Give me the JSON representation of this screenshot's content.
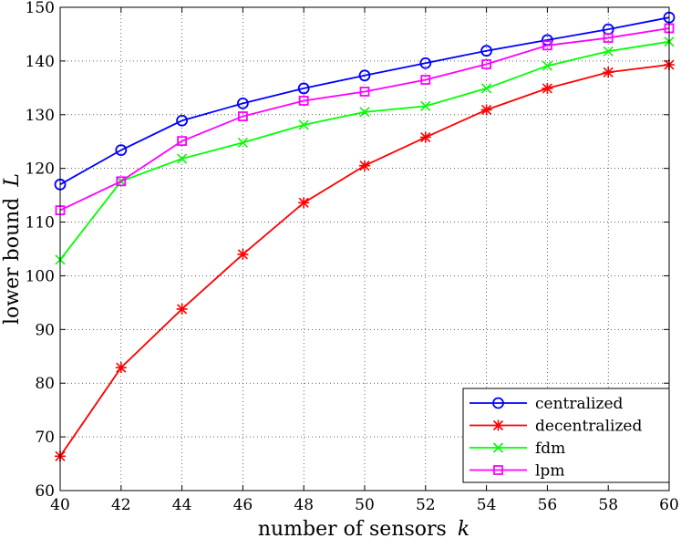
{
  "chart_data": {
    "type": "line",
    "xlabel": "number of sensors",
    "xlabel_var": "k",
    "ylabel": "lower bound",
    "ylabel_var": "L",
    "xlim": [
      40,
      60
    ],
    "ylim": [
      60,
      150
    ],
    "xticks": [
      40,
      42,
      44,
      46,
      48,
      50,
      52,
      54,
      56,
      58,
      60
    ],
    "yticks": [
      60,
      70,
      80,
      90,
      100,
      110,
      120,
      130,
      140,
      150
    ],
    "grid": true,
    "legend_position": "bottom-right",
    "x": [
      40,
      42,
      44,
      46,
      48,
      50,
      52,
      54,
      56,
      58,
      60
    ],
    "series": [
      {
        "name": "centralized",
        "color": "#0000ff",
        "marker": "circle",
        "values": [
          117,
          123.4,
          128.9,
          132.1,
          134.9,
          137.3,
          139.6,
          141.9,
          143.9,
          145.9,
          148.1
        ]
      },
      {
        "name": "decentralized",
        "color": "#ff0000",
        "marker": "asterisk",
        "values": [
          66.4,
          82.9,
          93.8,
          104,
          113.6,
          120.5,
          125.8,
          130.9,
          134.9,
          137.9,
          139.3
        ]
      },
      {
        "name": "fdm",
        "color": "#00ff00",
        "marker": "x",
        "values": [
          103,
          117.6,
          121.8,
          124.8,
          128.1,
          130.5,
          131.6,
          134.9,
          139.1,
          141.8,
          143.6
        ]
      },
      {
        "name": "lpm",
        "color": "#ff00ff",
        "marker": "square",
        "values": [
          112.2,
          117.6,
          125.1,
          129.7,
          132.6,
          134.3,
          136.5,
          139.4,
          142.9,
          144.3,
          146.1
        ]
      }
    ]
  }
}
